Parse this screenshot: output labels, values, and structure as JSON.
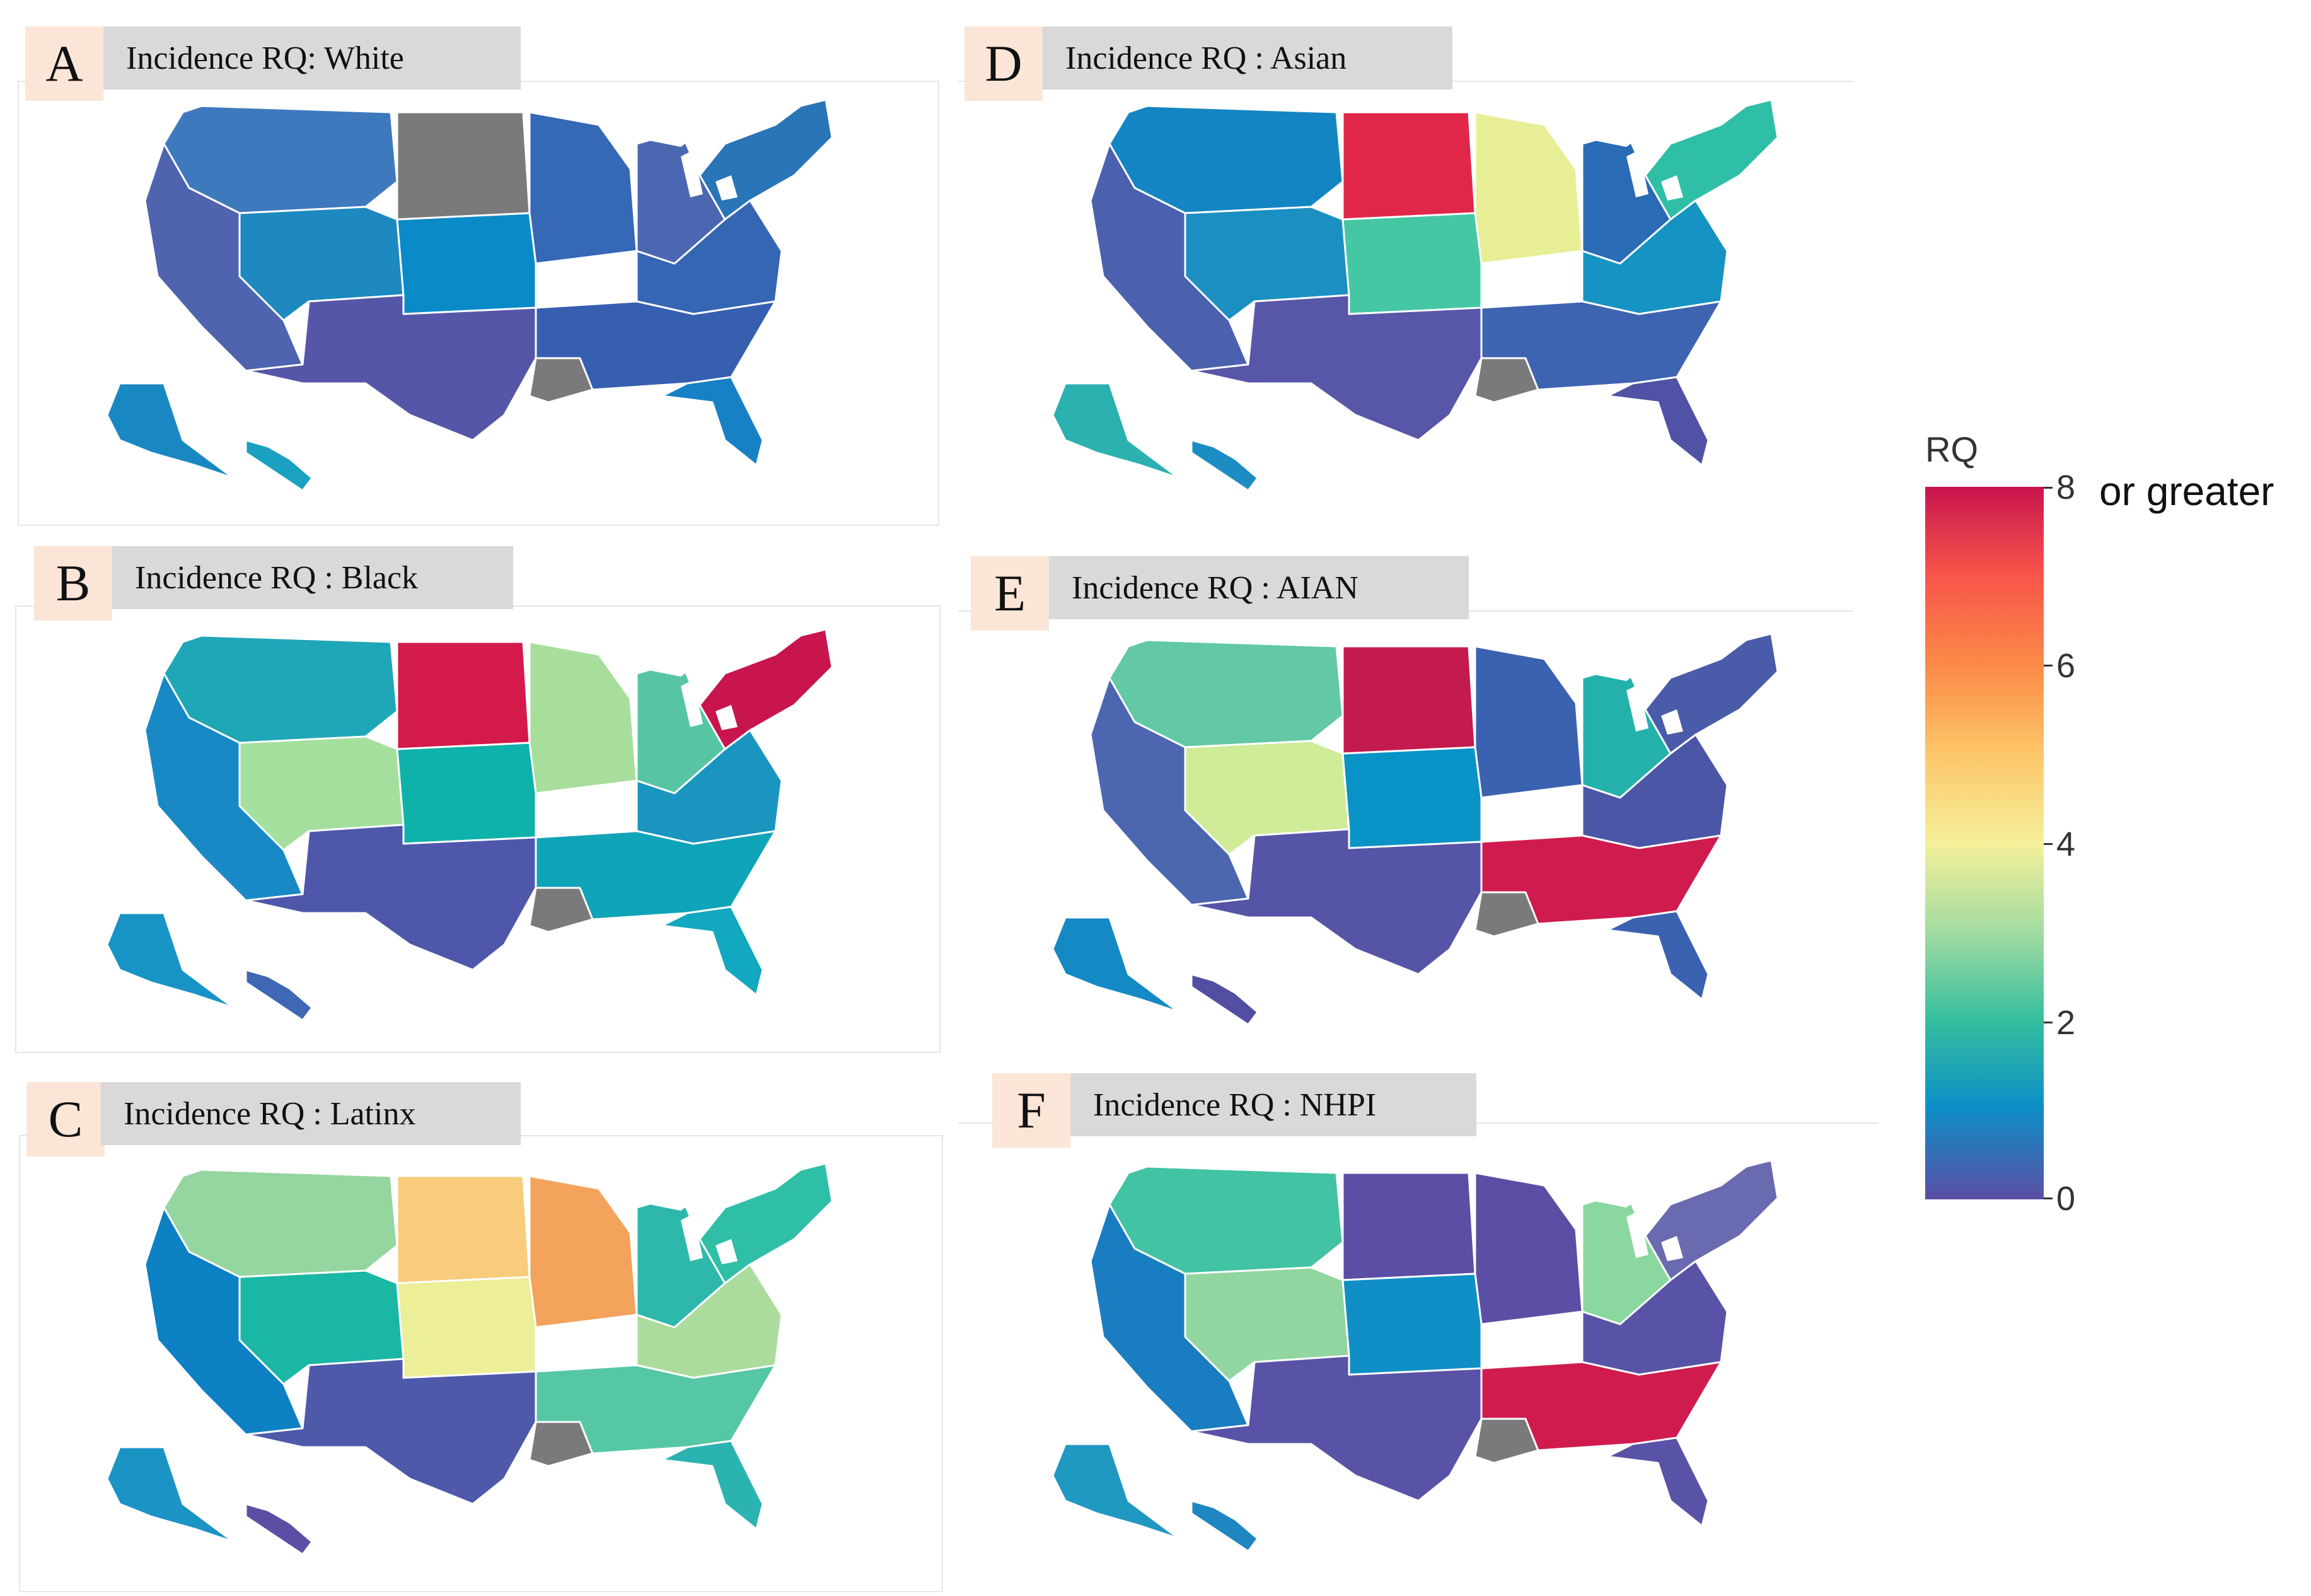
{
  "panels": [
    {
      "letter": "A",
      "title": "Incidence RQ: White",
      "colors": {
        "nw": "#3f79bd",
        "west": "#4f63ae",
        "mtn": "#1d89c0",
        "dakota": "#7a7a7a",
        "plains": "#0a8bc8",
        "south": "#5656a8",
        "midwest": "#3568b5",
        "ne": "#2a74b8",
        "east": "#3566b3",
        "lake": "#4b67b1",
        "southeast": "#365fb0",
        "la": "#7a7a7a",
        "fl": "#1781c6",
        "ak": "#1988c2",
        "hi": "#1aa0c0"
      }
    },
    {
      "letter": "B",
      "title": "Incidence RQ : Black",
      "colors": {
        "nw": "#1fa6b7",
        "west": "#1889c5",
        "mtn": "#a4df9d",
        "dakota": "#d31a4b",
        "plains": "#0fb2aa",
        "south": "#4e57aa",
        "midwest": "#a8de9c",
        "ne": "#c8154e",
        "east": "#1a95bf",
        "lake": "#57c5a4",
        "southeast": "#0fa4b8",
        "la": "#7a7a7a",
        "fl": "#12a8c0",
        "ak": "#1893c6",
        "hi": "#3f67b4"
      }
    },
    {
      "letter": "C",
      "title": "Incidence RQ : Latinx",
      "colors": {
        "nw": "#94d5a0",
        "west": "#0e80c4",
        "mtn": "#1ab7a4",
        "dakota": "#f8cc7c",
        "plains": "#ecee98",
        "south": "#4e59aa",
        "midwest": "#f3a35b",
        "ne": "#2fbfa6",
        "east": "#acdc9d",
        "lake": "#2eb8ab",
        "southeast": "#56c7a4",
        "la": "#7a7a7a",
        "fl": "#2bb3b1",
        "ak": "#1b93c4",
        "hi": "#5a4fa3"
      }
    },
    {
      "letter": "D",
      "title": "Incidence RQ : Asian",
      "colors": {
        "nw": "#1385c2",
        "west": "#4b61ad",
        "mtn": "#1c8fc2",
        "dakota": "#e0274a",
        "plains": "#45c7a4",
        "south": "#5856a8",
        "midwest": "#e8ee96",
        "ne": "#2fbfa6",
        "east": "#1593c2",
        "lake": "#2a6bb6",
        "southeast": "#3d63b1",
        "la": "#7a7a7a",
        "fl": "#5052a5",
        "ak": "#2ab1b0",
        "hi": "#1b8dc3"
      }
    },
    {
      "letter": "E",
      "title": "Incidence RQ : AIAN",
      "colors": {
        "nw": "#62c8a5",
        "west": "#4c66b0",
        "mtn": "#d0ec98",
        "dakota": "#c31a4f",
        "plains": "#0a93c6",
        "south": "#5654a7",
        "midwest": "#3b62b0",
        "ne": "#4a5ba9",
        "east": "#4c56a7",
        "lake": "#24b1ac",
        "southeast": "#cf1b4e",
        "la": "#7a7a7a",
        "fl": "#3b62b0",
        "ak": "#1589c4",
        "hi": "#524fa3"
      }
    },
    {
      "letter": "F",
      "title": "Incidence RQ : NHPI",
      "colors": {
        "nw": "#42c3a3",
        "west": "#1b7dc1",
        "mtn": "#91d5a0",
        "dakota": "#5a4fa5",
        "plains": "#0f8fc6",
        "south": "#5853a6",
        "midwest": "#5a4fa5",
        "ne": "#6a6ab0",
        "east": "#5853a6",
        "lake": "#8ad79f",
        "southeast": "#cf1b4e",
        "la": "#7a7a7a",
        "fl": "#5853a6",
        "ak": "#1f98c2",
        "hi": "#1f86c2"
      }
    }
  ],
  "legend": {
    "title": "RQ",
    "ticks": [
      "8",
      "6",
      "4",
      "2",
      "0"
    ],
    "note": "or greater",
    "max_value": 8,
    "min_value": 0
  }
}
